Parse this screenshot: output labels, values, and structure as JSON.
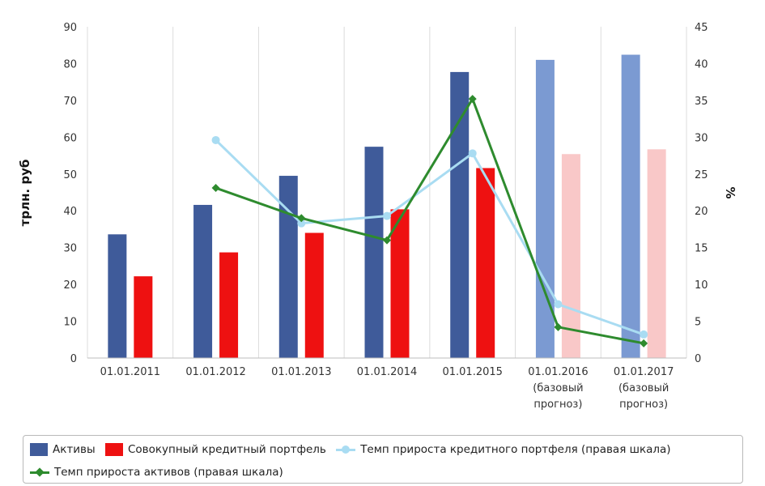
{
  "chart_data": {
    "type": "bar",
    "ylabel": "трлн. руб",
    "y2label": "%",
    "ylim": [
      0,
      90
    ],
    "y2lim": [
      0,
      45
    ],
    "yticks": [
      "0",
      "10",
      "20",
      "30",
      "40",
      "50",
      "60",
      "70",
      "80",
      "90"
    ],
    "y2ticks": [
      "0",
      "5",
      "10",
      "15",
      "20",
      "25",
      "30",
      "35",
      "40",
      "45"
    ],
    "categories": [
      [
        "01.01.2011"
      ],
      [
        "01.01.2012"
      ],
      [
        "01.01.2013"
      ],
      [
        "01.01.2014"
      ],
      [
        "01.01.2015"
      ],
      [
        "01.01.2016",
        "(базовый",
        "прогноз)"
      ],
      [
        "01.01.2017",
        "(базовый",
        "прогноз)"
      ]
    ],
    "forecast_from_index": 5,
    "series": [
      {
        "name": "Активы",
        "type": "bar",
        "axis": "left",
        "color": "#3f5b9a",
        "forecast_color": "#7b9ad2",
        "values": [
          33.6,
          41.6,
          49.5,
          57.4,
          77.7,
          81.0,
          82.4
        ]
      },
      {
        "name": "Совокупный кредитный портфель",
        "type": "bar",
        "axis": "left",
        "color": "#ee1111",
        "forecast_color": "#f9c8c8",
        "values": [
          22.2,
          28.7,
          34.0,
          40.4,
          51.6,
          55.4,
          56.7
        ]
      },
      {
        "name": "Темп прироста кредитного портфеля (правая шкала)",
        "type": "line",
        "axis": "right",
        "color": "#a9dcf2",
        "marker": "circle",
        "values": [
          null,
          29.6,
          18.3,
          19.3,
          27.8,
          7.3,
          3.2
        ]
      },
      {
        "name": "Темп прироста активов (правая шкала)",
        "type": "line",
        "axis": "right",
        "color": "#2e8b2e",
        "marker": "diamond",
        "values": [
          null,
          23.1,
          19.0,
          16.0,
          35.2,
          4.2,
          2.0
        ]
      }
    ],
    "grid": "vertical",
    "legend_position": "bottom"
  }
}
